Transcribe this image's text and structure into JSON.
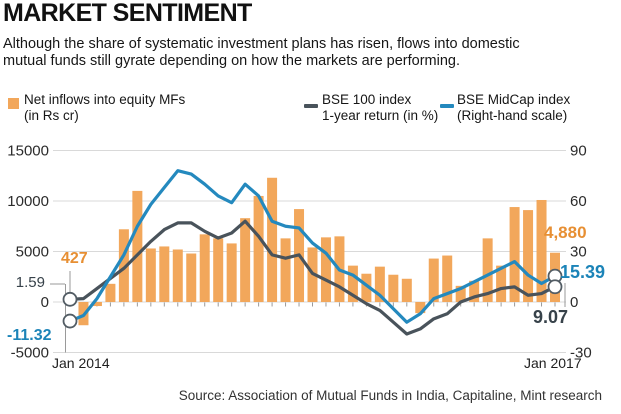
{
  "header": {
    "title": "MARKET SENTIMENT",
    "subtitle": [
      "Although the share of systematic investment plans has risen, flows into domestic",
      "mutual funds still gyrate depending on how the markets are performing."
    ]
  },
  "legend": {
    "bars_label": "Net inflows into equity MFs",
    "bars_sublabel": "(in Rs cr)",
    "bse100_label": "BSE 100 index",
    "bse100_sublabel": "1-year return (in %)",
    "midcap_label": "BSE MidCap index",
    "midcap_sublabel": "(Right-hand scale)"
  },
  "axes": {
    "left_ticks": [
      15000,
      10000,
      5000,
      0,
      -5000
    ],
    "right_ticks": [
      90,
      60,
      30,
      0,
      -30
    ],
    "x_start_label": "Jan 2014",
    "x_end_label": "Jan 2017"
  },
  "annotations": {
    "first_bar": "427",
    "bse100_start": "1.59",
    "midcap_start": "-11.32",
    "last_bar": "4,880",
    "midcap_end": "15.39",
    "bse100_end": "9.07"
  },
  "source": "Source: Association of Mutual Funds in India, Capitaline, Mint research",
  "colors": {
    "bar": "#F2A75B",
    "bar_text": "#E78F33",
    "bse100_line": "#49535B",
    "bse100_text": "#37424A",
    "midcap_line": "#2489BE",
    "midcap_text": "#1C84B8",
    "grid": "#D9D9D9",
    "tick": "#9A9A9A",
    "axis_text": "#2B2B2B",
    "marker_stroke": "#525C64"
  },
  "chart_data": {
    "type": "bar",
    "title": "MARKET SENTIMENT",
    "xlabel": "",
    "ylabel_left": "Net inflows into equity MFs (in Rs cr)",
    "ylabel_right": "1-year return (in %)",
    "left_axis_range": [
      -5000,
      15000
    ],
    "right_axis_range": [
      -30,
      90
    ],
    "grid": true,
    "legend_position": "top",
    "x_axis_labels_visible": [
      "Jan 2014",
      "Jan 2017"
    ],
    "categories": [
      "Jan 2014",
      "Feb 2014",
      "Mar 2014",
      "Apr 2014",
      "May 2014",
      "Jun 2014",
      "Jul 2014",
      "Aug 2014",
      "Sep 2014",
      "Oct 2014",
      "Nov 2014",
      "Dec 2014",
      "Jan 2015",
      "Feb 2015",
      "Mar 2015",
      "Apr 2015",
      "May 2015",
      "Jun 2015",
      "Jul 2015",
      "Aug 2015",
      "Sep 2015",
      "Oct 2015",
      "Nov 2015",
      "Dec 2015",
      "Jan 2016",
      "Feb 2016",
      "Mar 2016",
      "Apr 2016",
      "May 2016",
      "Jun 2016",
      "Jul 2016",
      "Aug 2016",
      "Sep 2016",
      "Oct 2016",
      "Nov 2016",
      "Dec 2016",
      "Jan 2017"
    ],
    "series": [
      {
        "name": "Net inflows into equity MFs (in Rs cr)",
        "type": "bar",
        "axis": "left",
        "values": [
          427,
          -2300,
          -400,
          1800,
          7200,
          11000,
          5300,
          5500,
          5200,
          4800,
          6700,
          6300,
          5800,
          8300,
          10500,
          12300,
          6300,
          9200,
          5400,
          6400,
          6500,
          3600,
          2800,
          3500,
          2700,
          2300,
          -1100,
          4300,
          4600,
          1600,
          2100,
          6300,
          3600,
          9400,
          9100,
          10100,
          4880
        ]
      },
      {
        "name": "BSE 100 index 1-year return (in %)",
        "type": "line",
        "axis": "right",
        "values": [
          1.59,
          2,
          8,
          14,
          20,
          28,
          36,
          43,
          47,
          47,
          42,
          38,
          41,
          48,
          39,
          28,
          26,
          28,
          17,
          13,
          9,
          4,
          -1,
          -5,
          -12,
          -19,
          -16,
          -10,
          -7,
          0,
          3,
          5,
          8,
          9,
          4,
          5,
          9.07
        ]
      },
      {
        "name": "BSE MidCap index 1-year return (in %)",
        "type": "line",
        "axis": "right",
        "values": [
          -11.32,
          -8,
          2,
          15,
          28,
          45,
          58,
          68,
          78,
          76,
          70,
          63,
          59,
          70,
          63,
          48,
          45,
          44,
          35,
          29,
          19,
          16,
          10,
          4,
          -4,
          -12,
          -7,
          2,
          5,
          8,
          12,
          16,
          20,
          24,
          16,
          11,
          15.39
        ]
      }
    ],
    "endpoint_labels": {
      "bar_first": 427,
      "bar_last": 4880,
      "bse100_first": 1.59,
      "bse100_last": 9.07,
      "midcap_first": -11.32,
      "midcap_last": 15.39
    }
  }
}
